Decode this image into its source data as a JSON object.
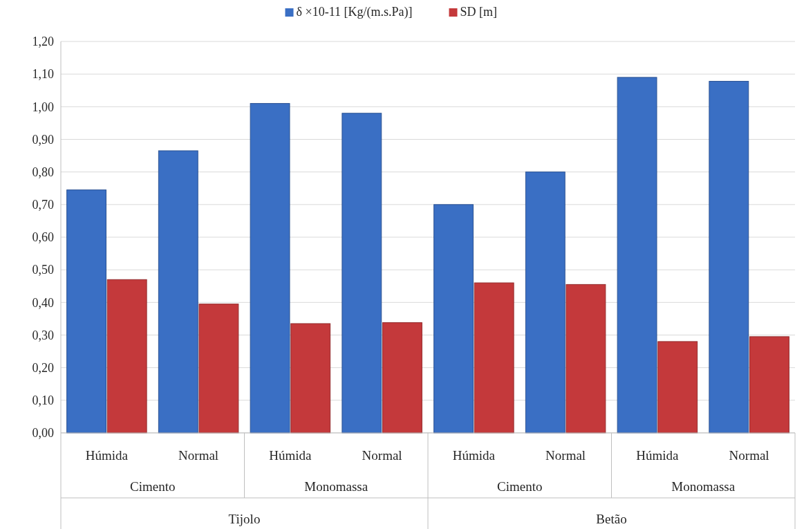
{
  "chart_data": {
    "type": "bar",
    "categories": [
      "Húmida",
      "Normal",
      "Húmida",
      "Normal",
      "Húmida",
      "Normal",
      "Húmida",
      "Normal"
    ],
    "series": [
      {
        "name": "δ ×10-11 [Kg/(m.s.Pa)]",
        "color": "#3a6fc4",
        "values": [
          0.745,
          0.865,
          1.01,
          0.98,
          0.7,
          0.8,
          1.09,
          1.078
        ]
      },
      {
        "name": "SD [m]",
        "color": "#c4393b",
        "values": [
          0.47,
          0.395,
          0.335,
          0.338,
          0.46,
          0.455,
          0.28,
          0.295
        ]
      }
    ],
    "annotations": [
      "Cimento",
      "Monomassa",
      "Cimento",
      "Monomassa",
      "Tijolo",
      "Betão"
    ],
    "ylim": [
      0,
      1.2
    ],
    "yticks": [
      {
        "value": 0,
        "label": "0,00"
      },
      {
        "value": 0.1,
        "label": "0,10"
      },
      {
        "value": 0.2,
        "label": "0,20"
      },
      {
        "value": 0.3,
        "label": "0,30"
      },
      {
        "value": 0.4,
        "label": "0,40"
      },
      {
        "value": 0.5,
        "label": "0,50"
      },
      {
        "value": 0.6,
        "label": "0,60"
      },
      {
        "value": 0.7,
        "label": "0,70"
      },
      {
        "value": 0.8,
        "label": "0,80"
      },
      {
        "value": 0.9,
        "label": "0,90"
      },
      {
        "value": 1.0,
        "label": "1,00"
      },
      {
        "value": 1.1,
        "label": "1,10"
      },
      {
        "value": 1.2,
        "label": "1,20"
      }
    ],
    "grid": "y",
    "legend": "top"
  }
}
